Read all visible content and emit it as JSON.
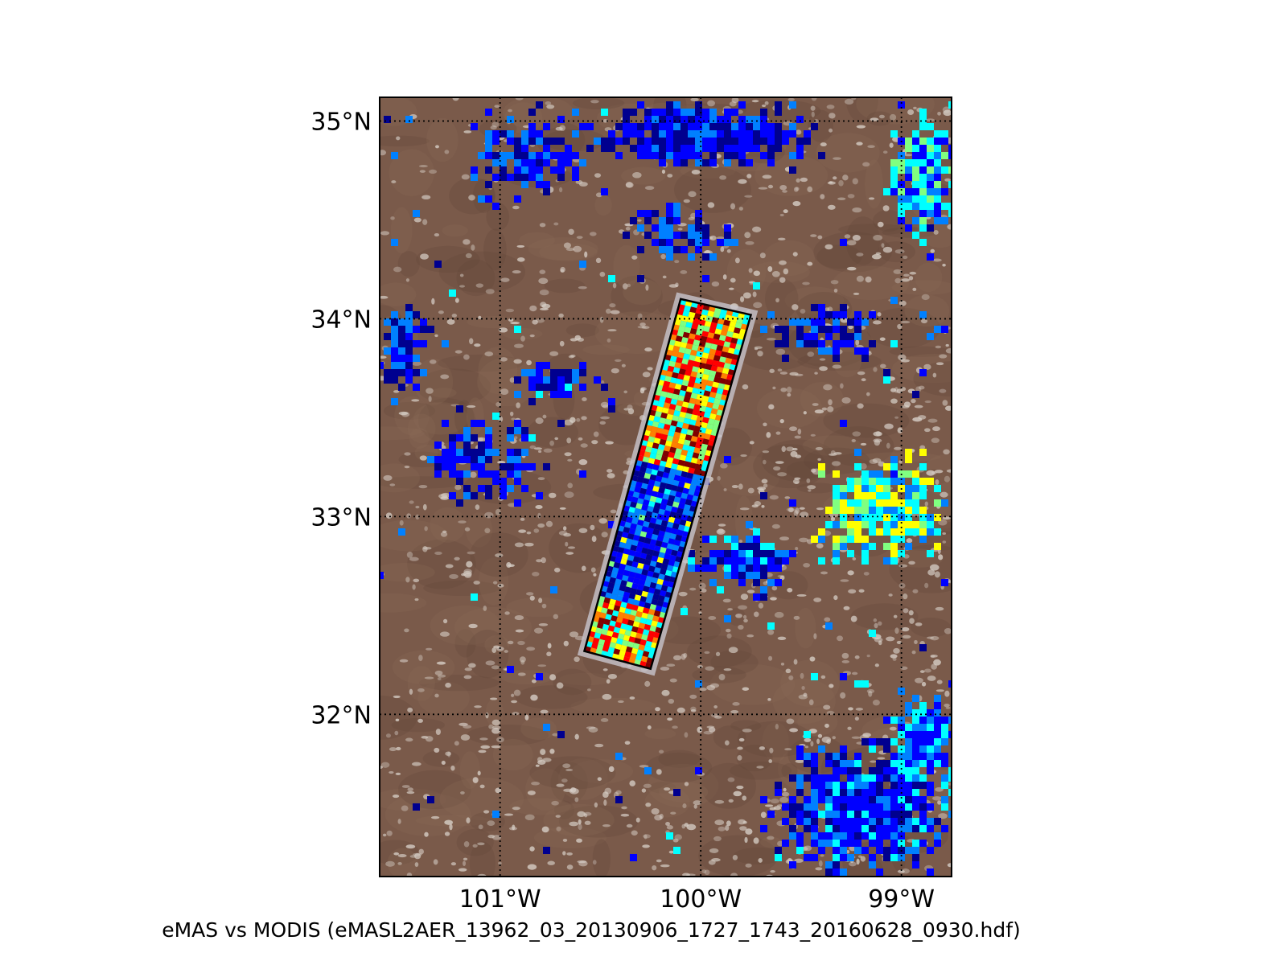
{
  "caption": "eMAS vs MODIS (eMASL2AER_13962_03_20130906_1727_1743_20160628_0930.hdf)",
  "map": {
    "lat_ticks": [
      {
        "value": 35,
        "label": "35°N"
      },
      {
        "value": 34,
        "label": "34°N"
      },
      {
        "value": 33,
        "label": "33°N"
      },
      {
        "value": 32,
        "label": "32°N"
      }
    ],
    "lon_ticks": [
      {
        "value": -101,
        "label": "101°W"
      },
      {
        "value": -100,
        "label": "100°W"
      },
      {
        "value": -99,
        "label": "99°W"
      }
    ],
    "extent": {
      "lon_min": -101.6,
      "lon_max": -98.75,
      "lat_min": 31.18,
      "lat_max": 35.12
    },
    "swath_corners_latlon": [
      [
        34.1,
        -100.1
      ],
      [
        34.02,
        -99.75
      ],
      [
        32.23,
        -100.25
      ],
      [
        32.32,
        -100.58
      ]
    ],
    "colors": {
      "land": "#7a5a4a",
      "land_dark": "#5e4438",
      "cloud": "#d8d0c8",
      "frame": "#000000",
      "colormap": [
        "#00008f",
        "#0000ff",
        "#0080ff",
        "#00ffff",
        "#80ff80",
        "#ffff00",
        "#ff8000",
        "#ff0000",
        "#800000"
      ]
    }
  }
}
